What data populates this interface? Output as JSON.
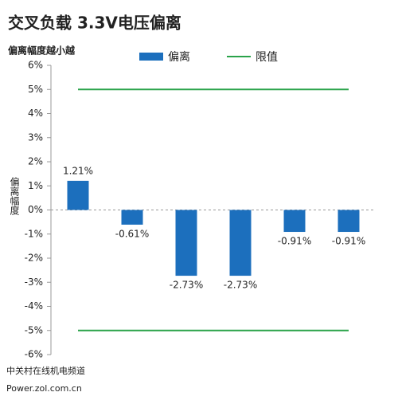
{
  "chart_data": {
    "type": "bar",
    "title": "交叉负载 3.3V电压偏离",
    "subtitle": "偏离幅度越小越",
    "y_label": "偏离幅度",
    "categories": [
      null,
      null,
      null,
      null,
      null,
      null
    ],
    "series": [
      {
        "name": "偏离",
        "color": "#1c6fbd",
        "values": [
          1.21,
          -0.61,
          -2.73,
          -2.73,
          -0.91,
          -0.91
        ],
        "value_labels": [
          "1.21%",
          "-0.61%",
          "-2.73%",
          "-2.73%",
          "-0.91%",
          "-0.91%"
        ]
      }
    ],
    "reference_lines": {
      "name": "限值",
      "color": "#2aa34a",
      "values": [
        5,
        -5
      ]
    },
    "ylim": [
      -6,
      6
    ],
    "yticks": [
      {
        "value": -6,
        "label": "-6%"
      },
      {
        "value": -5,
        "label": "-5%"
      },
      {
        "value": -4,
        "label": "-4%"
      },
      {
        "value": -3,
        "label": "-3%"
      },
      {
        "value": -2,
        "label": "-2%"
      },
      {
        "value": -1,
        "label": "-1%"
      },
      {
        "value": 0,
        "label": "0%"
      },
      {
        "value": 1,
        "label": "1%"
      },
      {
        "value": 2,
        "label": "2%"
      },
      {
        "value": 3,
        "label": "3%"
      },
      {
        "value": 4,
        "label": "4%"
      },
      {
        "value": 5,
        "label": "5%"
      },
      {
        "value": 6,
        "label": "6%"
      }
    ],
    "footer": [
      "中关村在线机电频道",
      "Power.zol.com.cn"
    ]
  }
}
